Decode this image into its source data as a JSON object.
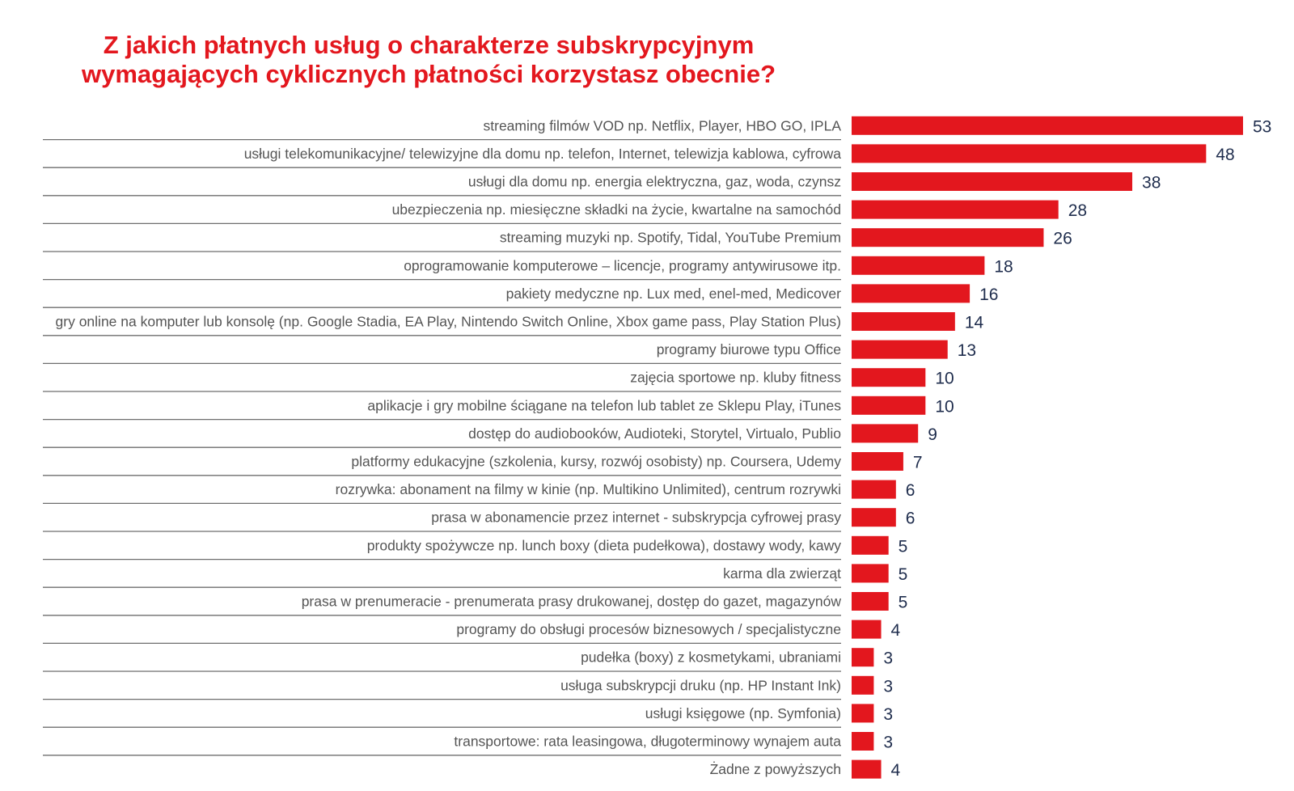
{
  "chart_data": {
    "type": "bar",
    "orientation": "horizontal",
    "title_lines": [
      "Z jakich płatnych usług o charakterze subskrypcyjnym",
      "wymagających cyklicznych płatności korzystasz obecnie?"
    ],
    "bar_color": "#e3171e",
    "title_color": "#e3171e",
    "value_label_color": "#1f2d4d",
    "xlim": [
      0,
      53
    ],
    "grid": false,
    "categories": [
      "streaming filmów VOD np. Netflix, Player, HBO GO, IPLA",
      "usługi telekomunikacyjne/ telewizyjne  dla domu  np. telefon, Internet, telewizja kablowa, cyfrowa",
      "usługi dla domu np. energia elektryczna, gaz, woda, czynsz",
      "ubezpieczenia np. miesięczne składki na życie, kwartalne na samochód",
      "streaming muzyki np. Spotify, Tidal, YouTube Premium",
      "oprogramowanie komputerowe – licencje, programy antywirusowe itp.",
      "pakiety medyczne np. Lux med, enel-med, Medicover",
      "gry online na komputer lub konsolę (np. Google Stadia, EA Play, Nintendo Switch Online, Xbox game pass, Play Station Plus)",
      "programy biurowe typu Office",
      "zajęcia sportowe np. kluby fitness",
      "aplikacje i gry mobilne ściągane na telefon lub tablet ze Sklepu Play, iTunes",
      "dostęp do audiobooków, Audioteki, Storytel, Virtualo, Publio",
      "platformy edukacyjne (szkolenia, kursy, rozwój osobisty) np. Coursera, Udemy",
      "rozrywka: abonament na filmy w kinie (np. Multikino Unlimited), centrum rozrywki",
      "prasa w abonamencie przez internet - subskrypcja cyfrowej prasy",
      "produkty spożywcze np. lunch boxy (dieta pudełkowa), dostawy wody, kawy",
      "karma dla zwierząt",
      "prasa w prenumeracie - prenumerata prasy drukowanej, dostęp do gazet, magazynów",
      "programy do obsługi procesów biznesowych / specjalistyczne",
      "pudełka (boxy) z kosmetykami, ubraniami",
      "usługa subskrypcji druku (np. HP Instant Ink)",
      "usługi księgowe (np. Symfonia)",
      "transportowe: rata leasingowa, długoterminowy wynajem auta",
      "Żadne z powyższych"
    ],
    "values": [
      53,
      48,
      38,
      28,
      26,
      18,
      16,
      14,
      13,
      10,
      10,
      9,
      7,
      6,
      6,
      5,
      5,
      5,
      4,
      3,
      3,
      3,
      3,
      4
    ]
  }
}
